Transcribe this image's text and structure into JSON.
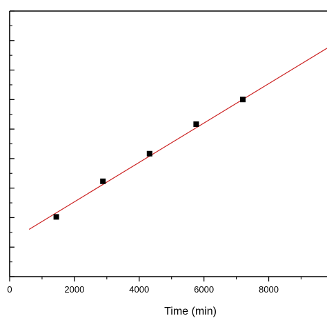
{
  "chart_data": {
    "type": "scatter",
    "title": "",
    "xlabel": "Time (min)",
    "ylabel": "",
    "xlim": [
      0,
      9800
    ],
    "ylim": [
      0,
      1
    ],
    "x_ticks": [
      0,
      2000,
      4000,
      6000,
      8000
    ],
    "x_tick_labels": [
      "0",
      "2000",
      "4000",
      "6000",
      "8000"
    ],
    "grid": false,
    "series": [
      {
        "type": "scatter",
        "color": "#000000",
        "points": [
          {
            "x": 1440,
            "y": 0.225
          },
          {
            "x": 2880,
            "y": 0.359
          },
          {
            "x": 4320,
            "y": 0.463
          },
          {
            "x": 5760,
            "y": 0.574
          },
          {
            "x": 7200,
            "y": 0.667
          }
        ]
      },
      {
        "type": "line",
        "color": "#cc2222",
        "points": [
          {
            "x": 600,
            "y": 0.178
          },
          {
            "x": 9800,
            "y": 0.86
          }
        ]
      }
    ]
  }
}
